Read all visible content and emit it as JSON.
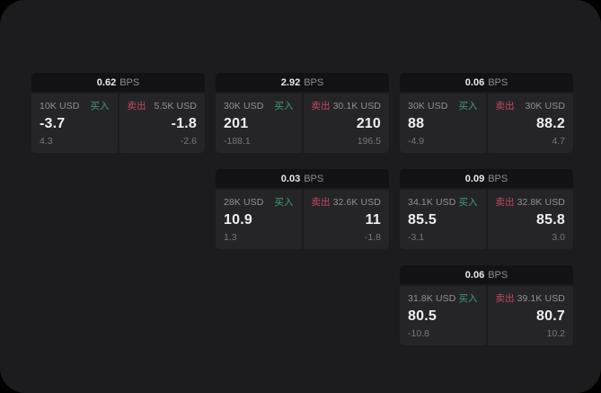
{
  "labels": {
    "bps_unit": "BPS",
    "buy": "买入",
    "sell": "卖出"
  },
  "colors": {
    "canvas": "#000000",
    "surface": "#1c1c1e",
    "card_header": "#121214",
    "panel": "#252528",
    "buy_green": "#3f9e74",
    "sell_red": "#c14a62",
    "text_primary": "#efeff0",
    "text_secondary": "#8e8e92"
  },
  "cards": [
    {
      "bps": "0.62",
      "buy": {
        "amount": "10K USD",
        "price": "-3.7",
        "sub": "4.3"
      },
      "sell": {
        "amount": "5.5K USD",
        "price": "-1.8",
        "sub": "-2.6"
      }
    },
    {
      "bps": "2.92",
      "buy": {
        "amount": "30K USD",
        "price": "201",
        "sub": "-188.1"
      },
      "sell": {
        "amount": "30.1K USD",
        "price": "210",
        "sub": "196.5"
      }
    },
    {
      "bps": "0.06",
      "buy": {
        "amount": "30K USD",
        "price": "88",
        "sub": "-4.9"
      },
      "sell": {
        "amount": "30K USD",
        "price": "88.2",
        "sub": "4.7"
      }
    },
    {
      "bps": "0.03",
      "buy": {
        "amount": "28K USD",
        "price": "10.9",
        "sub": "1.3"
      },
      "sell": {
        "amount": "32.6K USD",
        "price": "11",
        "sub": "-1.8"
      }
    },
    {
      "bps": "0.09",
      "buy": {
        "amount": "34.1K USD",
        "price": "85.5",
        "sub": "-3.1"
      },
      "sell": {
        "amount": "32.8K USD",
        "price": "85.8",
        "sub": "3.0"
      }
    },
    {
      "bps": "0.06",
      "buy": {
        "amount": "31.8K USD",
        "price": "80.5",
        "sub": "-10.8"
      },
      "sell": {
        "amount": "39.1K USD",
        "price": "80.7",
        "sub": "10.2"
      }
    }
  ]
}
